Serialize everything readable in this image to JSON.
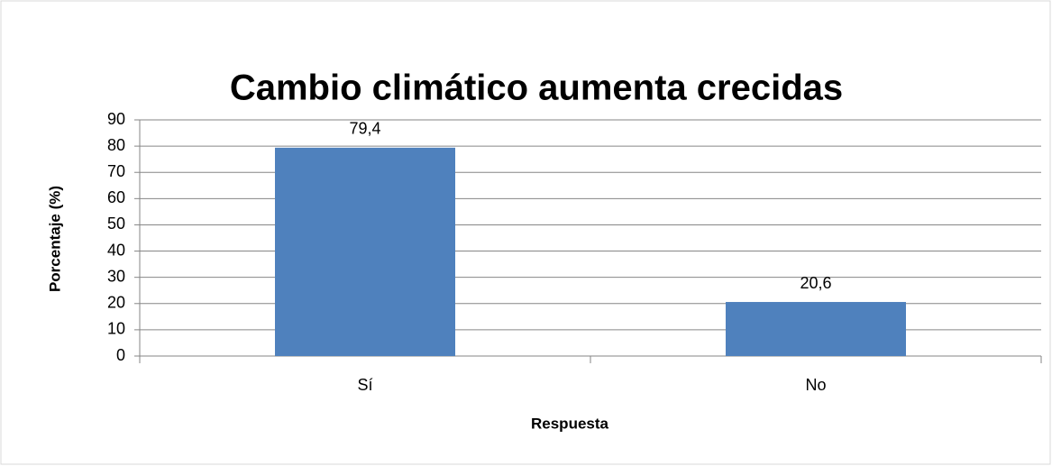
{
  "chart_data": {
    "type": "bar",
    "title": "Cambio climático aumenta crecidas",
    "x_label": "Respuesta",
    "y_label": "Porcentaje (%)",
    "categories": [
      "Sí",
      "No"
    ],
    "values": [
      79.4,
      20.6
    ],
    "value_labels": [
      "79,4",
      "20,6"
    ],
    "color": "#4f81bd",
    "ylim": [
      0,
      90
    ],
    "yticks": [
      0,
      10,
      20,
      30,
      40,
      50,
      60,
      70,
      80,
      90
    ],
    "grid": true
  }
}
